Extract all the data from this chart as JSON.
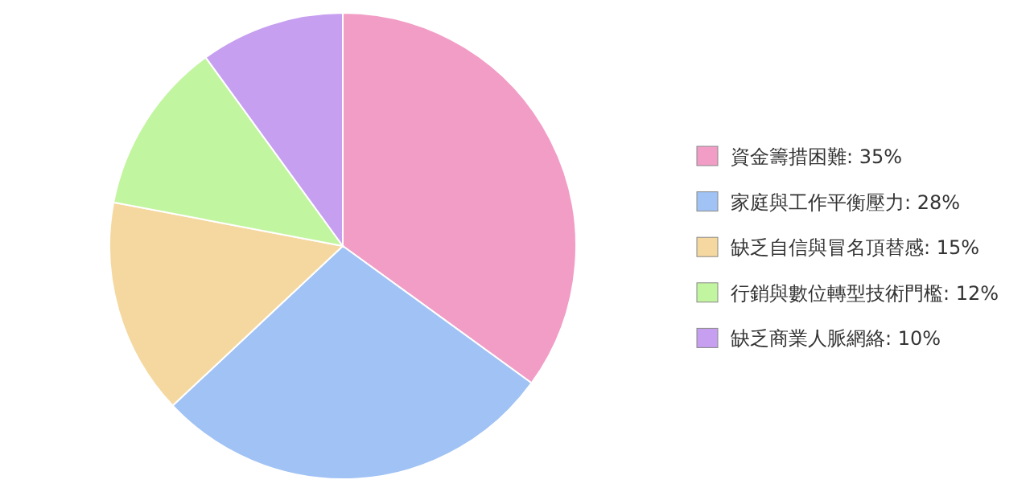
{
  "chart_data": {
    "type": "pie",
    "categories": [
      "資金籌措困難",
      "家庭與工作平衡壓力",
      "缺乏自信與冒名頂替感",
      "行銷與數位轉型技術門檻",
      "缺乏商業人脈網絡"
    ],
    "values": [
      35,
      28,
      15,
      12,
      10
    ],
    "value_labels": [
      "35%",
      "28%",
      "15%",
      "12%",
      "10%"
    ],
    "colors": [
      "#f29dc6",
      "#a0c2f5",
      "#f5d8a0",
      "#c2f5a0",
      "#c79ff0"
    ],
    "legend": "right"
  }
}
